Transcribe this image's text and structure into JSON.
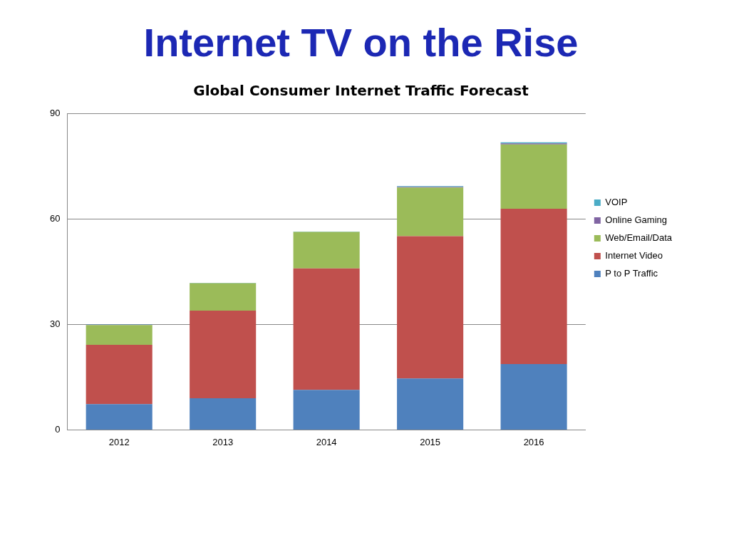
{
  "chart_data": {
    "type": "bar",
    "title": "Internet TV on the Rise",
    "subtitle": "Global Consumer Internet Traffic Forecast",
    "categories": [
      "2012",
      "2013",
      "2014",
      "2015",
      "2016"
    ],
    "series": [
      {
        "name": "P to P Traffic",
        "color": "#4f81bd",
        "values": [
          7.3,
          9.0,
          11.4,
          14.6,
          18.7
        ]
      },
      {
        "name": "Internet Video",
        "color": "#c0504d",
        "values": [
          16.9,
          24.9,
          34.5,
          40.5,
          44.2
        ]
      },
      {
        "name": "Web/Email/Data",
        "color": "#9bbb59",
        "values": [
          5.6,
          7.8,
          10.4,
          13.8,
          18.3
        ]
      },
      {
        "name": "Online Gaming",
        "color": "#8064a2",
        "values": [
          0.1,
          null,
          null,
          0.2,
          0.3
        ]
      },
      {
        "name": "VOIP",
        "color": "#4bacc6",
        "values": [
          0.1,
          0.1,
          0.1,
          0.2,
          0.3
        ]
      }
    ],
    "stacked": true,
    "ylim": [
      0,
      90
    ],
    "yticks": [
      0,
      30,
      60,
      90
    ],
    "grid": "y",
    "legend": "right"
  }
}
